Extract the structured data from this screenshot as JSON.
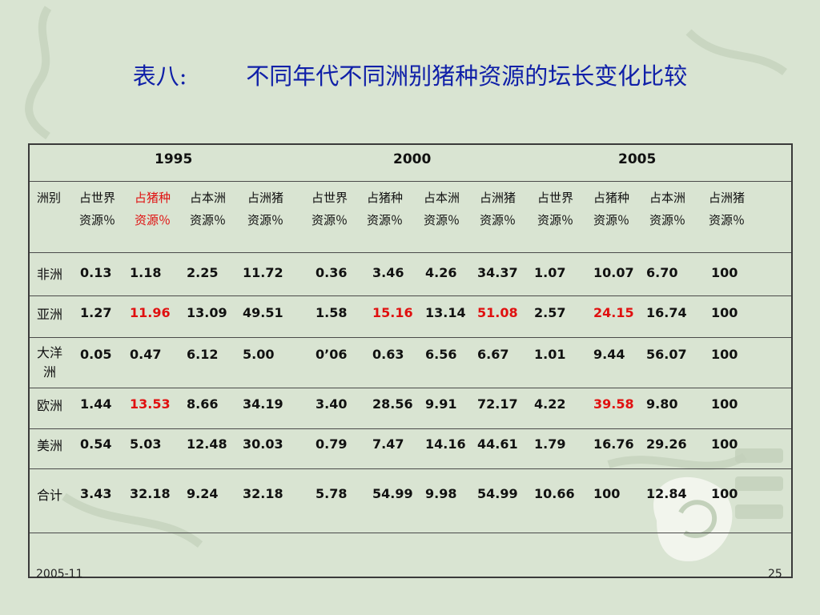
{
  "title": "表八:        不同年代不同洲别猪种资源的坛长变化比较",
  "years": [
    "1995",
    "2000",
    "2005"
  ],
  "region_header": "洲别",
  "column_headers": [
    {
      "l1": "占世界",
      "l2": "资源％",
      "red": false
    },
    {
      "l1": "占猪种",
      "l2": "资源％",
      "red": true
    },
    {
      "l1": "占本洲",
      "l2": "资源％",
      "red": false
    },
    {
      "l1": "占洲猪",
      "l2": "资源％",
      "red": false
    },
    {
      "l1": "占世界",
      "l2": "资源％",
      "red": false
    },
    {
      "l1": "占猪种",
      "l2": "资源％",
      "red": false
    },
    {
      "l1": "占本洲",
      "l2": "资源％",
      "red": false
    },
    {
      "l1": "占洲猪",
      "l2": "资源％",
      "red": false
    },
    {
      "l1": "占世界",
      "l2": "资源％",
      "red": false
    },
    {
      "l1": "占猪种",
      "l2": "资源％",
      "red": false
    },
    {
      "l1": "占本洲",
      "l2": "资源％",
      "red": false
    },
    {
      "l1": "占洲猪",
      "l2": "资源％",
      "red": false
    }
  ],
  "rows": [
    {
      "region": "非洲",
      "values": [
        "0.13",
        "1.18",
        "2.25",
        "11.72",
        "0.36",
        "3.46",
        "4.26",
        "34.37",
        "1.07",
        "10.07",
        "6.70",
        "100"
      ],
      "red": []
    },
    {
      "region": "亚洲",
      "values": [
        "1.27",
        "11.96",
        "13.09",
        "49.51",
        "1.58",
        "15.16",
        "13.14",
        "51.08",
        "2.57",
        "24.15",
        "16.74",
        "100"
      ],
      "red": [
        1,
        5,
        7,
        9
      ]
    },
    {
      "region": "大洋\n洲",
      "values": [
        "0.05",
        "0.47",
        "6.12",
        "5.00",
        "0’06",
        "0.63",
        "6.56",
        "6.67",
        "1.01",
        "9.44",
        "56.07",
        "100"
      ],
      "red": []
    },
    {
      "region": "欧洲",
      "values": [
        "1.44",
        "13.53",
        "8.66",
        "34.19",
        "3.40",
        "28.56",
        "9.91",
        "72.17",
        "4.22",
        "39.58",
        "9.80",
        "100"
      ],
      "red": [
        1,
        9
      ]
    },
    {
      "region": "美洲",
      "values": [
        "0.54",
        "5.03",
        "12.48",
        "30.03",
        "0.79",
        "7.47",
        "14.16",
        "44.61",
        "1.79",
        "16.76",
        "29.26",
        "100"
      ],
      "red": []
    },
    {
      "region": "合计",
      "values": [
        "3.43",
        "32.18",
        "9.24",
        "32.18",
        "5.78",
        "54.99",
        "9.98",
        "54.99",
        "10.66",
        "100",
        "12.84",
        "100"
      ],
      "red": []
    }
  ],
  "footer": {
    "date": "2005-11",
    "page": "25"
  },
  "colors": {
    "background": "#d9e4d2",
    "title": "#1020a8",
    "highlight": "#e01010"
  }
}
